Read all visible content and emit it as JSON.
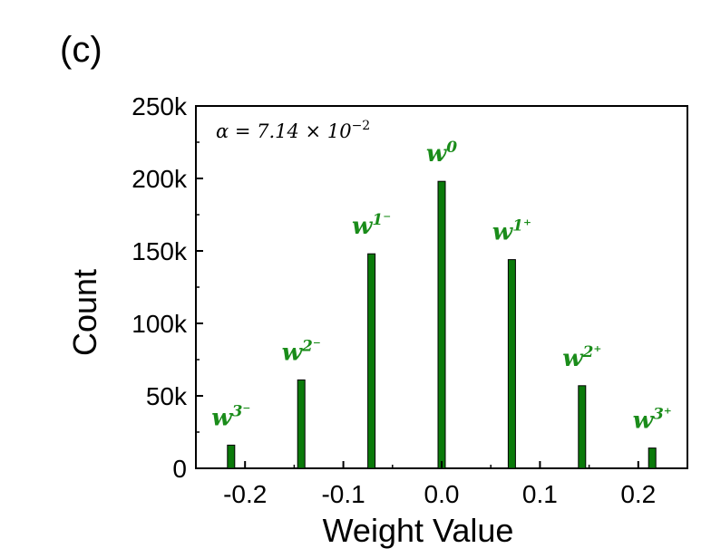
{
  "panel_label": "(c)",
  "annotation": {
    "prefix": "α = 7.14 × 10",
    "exponent": "−2"
  },
  "colors": {
    "bar_fill": "#0a7a0a",
    "bar_stroke": "#000000",
    "label": "#1a8c1a"
  },
  "chart_data": {
    "type": "bar",
    "xlabel": "Weight Value",
    "ylabel": "Count",
    "xlim": [
      -0.25,
      0.25
    ],
    "ylim": [
      0,
      250000
    ],
    "x_ticks": [
      -0.2,
      -0.1,
      0.0,
      0.1,
      0.2
    ],
    "x_tick_labels": [
      "-0.2",
      "-0.1",
      "0.0",
      "0.1",
      "0.2"
    ],
    "y_ticks": [
      0,
      50000,
      100000,
      150000,
      200000,
      250000
    ],
    "y_tick_labels": [
      "0",
      "50k",
      "100k",
      "150k",
      "200k",
      "250k"
    ],
    "bars": [
      {
        "x": -0.2142,
        "value": 16000,
        "label": "w",
        "sup": "3⁻"
      },
      {
        "x": -0.1428,
        "value": 61000,
        "label": "w",
        "sup": "2⁻"
      },
      {
        "x": -0.0714,
        "value": 148000,
        "label": "w",
        "sup": "1⁻"
      },
      {
        "x": 0.0,
        "value": 198000,
        "label": "w",
        "sup": "0"
      },
      {
        "x": 0.0714,
        "value": 144000,
        "label": "w",
        "sup": "1⁺"
      },
      {
        "x": 0.1428,
        "value": 57000,
        "label": "w",
        "sup": "2⁺"
      },
      {
        "x": 0.2142,
        "value": 14000,
        "label": "w",
        "sup": "3⁺"
      }
    ],
    "grid": false,
    "legend": "none"
  }
}
